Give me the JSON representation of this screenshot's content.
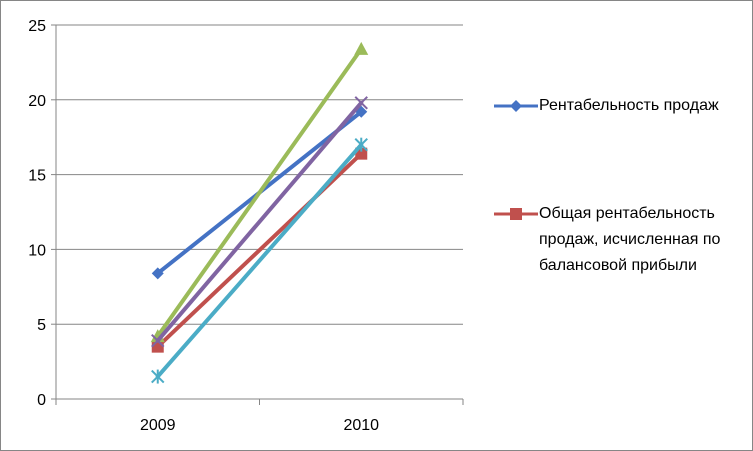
{
  "chart_data": {
    "type": "line",
    "categories": [
      "2009",
      "2010"
    ],
    "ylim": [
      0,
      25
    ],
    "yticks": [
      0,
      5,
      10,
      15,
      20,
      25
    ],
    "grid": true,
    "legend_position": "right",
    "series": [
      {
        "name": "Рентабельность продаж",
        "values": [
          8.4,
          19.2
        ],
        "color": "#4472C4",
        "marker": "diamond"
      },
      {
        "name": "Общая рентабельность продаж, исчисленная по балансовой прибыли",
        "values": [
          3.5,
          16.4
        ],
        "color": "#C0504D",
        "marker": "square"
      },
      {
        "name": "",
        "values": [
          4.2,
          23.4
        ],
        "color": "#9BBB59",
        "marker": "triangle"
      },
      {
        "name": "",
        "values": [
          3.9,
          19.8
        ],
        "color": "#8064A2",
        "marker": "x"
      },
      {
        "name": "",
        "values": [
          1.5,
          17.0
        ],
        "color": "#4BACC6",
        "marker": "star"
      }
    ]
  }
}
